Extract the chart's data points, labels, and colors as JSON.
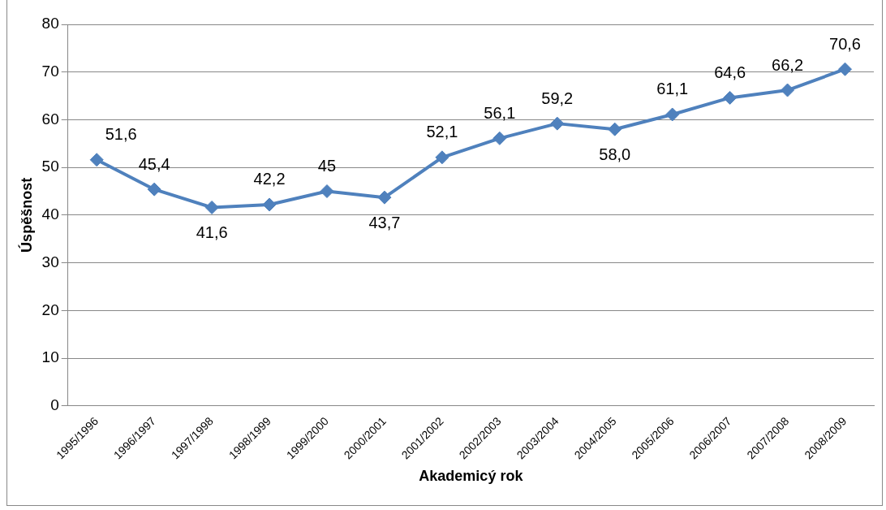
{
  "chart_data": {
    "type": "line",
    "xlabel": "Akademicý rok",
    "ylabel": "Úspěšnost",
    "categories": [
      "1995/1996",
      "1996/1997",
      "1997/1998",
      "1998/1999",
      "1999/2000",
      "2000/2001",
      "2001/2002",
      "2002/2003",
      "2003/2004",
      "2004/2005",
      "2005/2006",
      "2006/2007",
      "2007/2008",
      "2008/2009"
    ],
    "series": [
      {
        "color": "#4f81bd",
        "values": [
          51.6,
          45.4,
          41.6,
          42.2,
          45,
          43.7,
          52.1,
          56.1,
          59.2,
          58.0,
          61.1,
          64.6,
          66.2,
          70.6
        ],
        "value_labels": [
          "51,6",
          "45,4",
          "41,6",
          "42,2",
          "45",
          "43,7",
          "52,1",
          "56,1",
          "59,2",
          "58,0",
          "61,1",
          "64,6",
          "66,2",
          "70,6"
        ]
      }
    ],
    "ylim": [
      0,
      80
    ],
    "yticks": [
      0,
      10,
      20,
      30,
      40,
      50,
      60,
      70,
      80
    ],
    "grid": "y",
    "legend": false,
    "marker": "diamond",
    "line_style": "solid"
  }
}
